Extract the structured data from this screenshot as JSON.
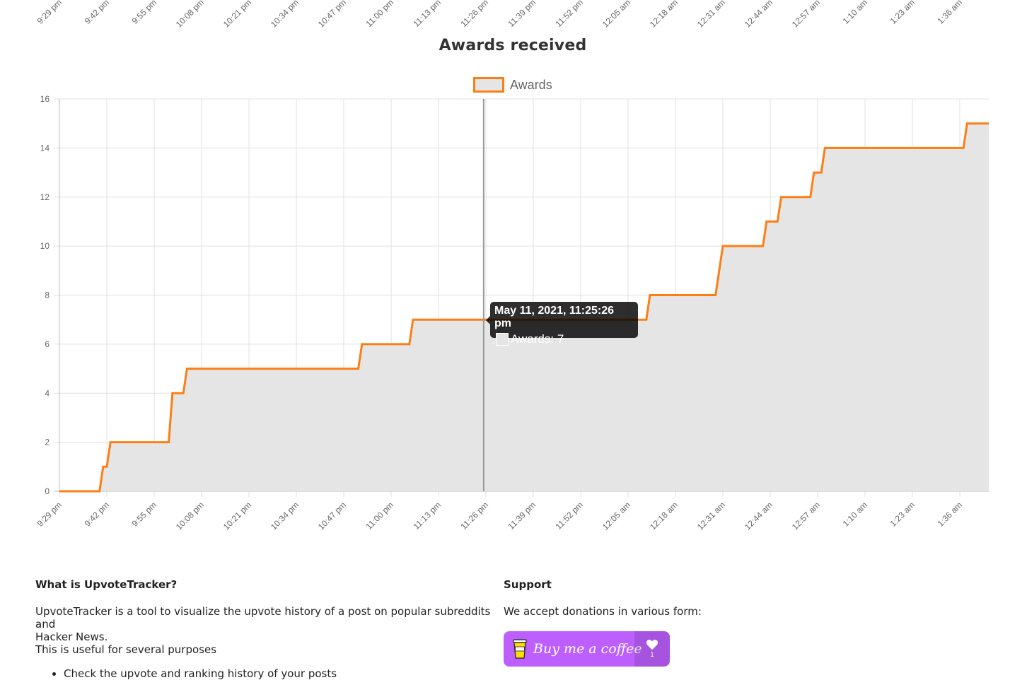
{
  "chart_data": {
    "type": "line",
    "title": "Awards received",
    "series": [
      {
        "name": "Awards",
        "x": [
          "9:29 pm",
          "9:40 pm",
          "9:41 pm",
          "9:42 pm",
          "9:43 pm",
          "9:59 pm",
          "10:00 pm",
          "10:03 pm",
          "10:04 pm",
          "10:51 pm",
          "10:52 pm",
          "11:05 pm",
          "11:06 pm",
          "11:25 pm",
          "11:26 pm",
          "12:10 am",
          "12:11 am",
          "12:29 am",
          "12:31 am",
          "12:42 am",
          "12:43 am",
          "12:46 am",
          "12:47 am",
          "12:55 am",
          "12:56 am",
          "12:58 am",
          "12:59 am",
          "1:37 am",
          "1:38 am",
          "1:44 am"
        ],
        "values": [
          0,
          0,
          1,
          1,
          2,
          2,
          4,
          4,
          5,
          5,
          6,
          6,
          7,
          7,
          7,
          7,
          8,
          8,
          10,
          10,
          11,
          11,
          12,
          12,
          13,
          13,
          14,
          14,
          15,
          15
        ],
        "line_color": "#fd7e14",
        "fill_color": "#e5e5e5"
      }
    ],
    "x_ticks": [
      "9:29 pm",
      "9:42 pm",
      "9:55 pm",
      "10:08 pm",
      "10:21 pm",
      "10:34 pm",
      "10:47 pm",
      "11:00 pm",
      "11:13 pm",
      "11:26 pm",
      "11:39 pm",
      "11:52 pm",
      "12:05 am",
      "12:18 am",
      "12:31 am",
      "12:44 am",
      "12:57 am",
      "1:10 am",
      "1:23 am",
      "1:36 am"
    ],
    "top_x_ticks": [
      "9:29 pm",
      "9:42 pm",
      "9:55 pm",
      "10:08 pm",
      "10:21 pm",
      "10:34 pm",
      "10:47 pm",
      "11:00 pm",
      "11:13 pm",
      "11:26 pm",
      "11:39 pm",
      "11:52 pm",
      "12:05 am",
      "12:18 am",
      "12:31 am",
      "12:44 am",
      "12:57 am",
      "1:10 am",
      "1:23 am",
      "1:36 am"
    ],
    "y_ticks": [
      0,
      2,
      4,
      6,
      8,
      10,
      12,
      14,
      16
    ],
    "ylim": [
      0,
      16
    ],
    "grid": true,
    "legend": "top-center",
    "tooltip": {
      "title": "May 11, 2021, 11:25:26 pm",
      "label": "Awards: 7"
    }
  },
  "info": {
    "heading": "What is UpvoteTracker?",
    "line1": "UpvoteTracker is a tool to visualize the upvote history of a post on popular subreddits and",
    "line2": "Hacker News.",
    "line3": "This is useful for several purposes",
    "bullet1": "Check the upvote and ranking history of your posts"
  },
  "support": {
    "heading": "Support",
    "text": "We accept donations in various form:",
    "coffee_label": "Buy me a coffee",
    "coffee_count": "1"
  }
}
